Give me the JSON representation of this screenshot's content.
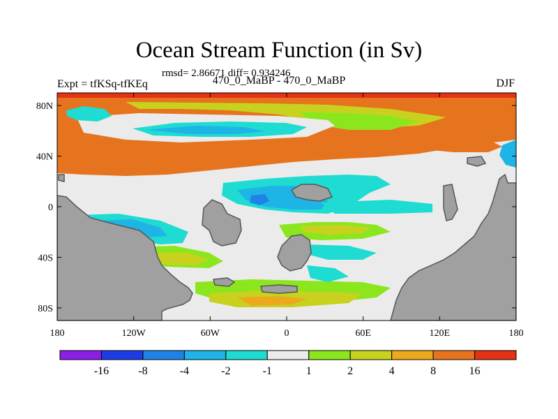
{
  "title": "Ocean Stream Function (in Sv)",
  "stats": "rmsd= 2.86671 diff= 0.934246",
  "left_label": "Expt = tfKSq-tfKEq",
  "center_label": "470_0_MaBP - 470_0_MaBP",
  "right_label": "DJF",
  "x_ticks": [
    {
      "value": -180,
      "label": "180"
    },
    {
      "value": -120,
      "label": "120W"
    },
    {
      "value": -60,
      "label": "60W"
    },
    {
      "value": 0,
      "label": "0"
    },
    {
      "value": 60,
      "label": "60E"
    },
    {
      "value": 120,
      "label": "120E"
    },
    {
      "value": 180,
      "label": "180"
    }
  ],
  "y_ticks": [
    {
      "value": 80,
      "label": "80N"
    },
    {
      "value": 40,
      "label": "40N"
    },
    {
      "value": 0,
      "label": "0"
    },
    {
      "value": -40,
      "label": "40S"
    },
    {
      "value": -80,
      "label": "80S"
    }
  ],
  "colorbar": {
    "colors": [
      "#8c1ee6",
      "#1e3ce6",
      "#1e82e6",
      "#1eb4e6",
      "#1edcd2",
      "#ebebeb",
      "#8ce61e",
      "#c8d21e",
      "#ebaa1e",
      "#e6731e",
      "#e63214"
    ],
    "labels": [
      "-16",
      "-8",
      "-4",
      "-2",
      "-1",
      "1",
      "2",
      "4",
      "8",
      "16"
    ]
  },
  "land_color": "#a0a0a0",
  "colors": {
    "neg1": "#1edcd2",
    "neg2": "#1eb4e6",
    "neg4": "#1e82e6",
    "pos2": "#8ce61e",
    "pos4": "#c8d21e",
    "pos8": "#ebaa1e",
    "pos16": "#e6731e",
    "pos32": "#e63214"
  }
}
